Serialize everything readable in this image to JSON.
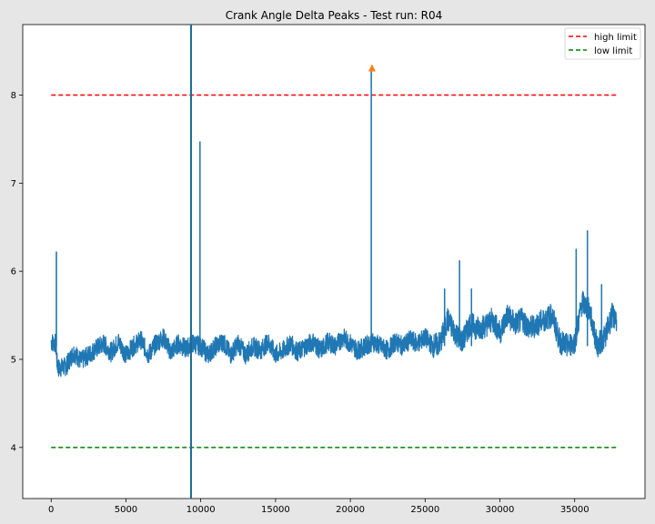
{
  "chart_data": {
    "type": "line",
    "title": "Crank Angle Delta Peaks - Test run: R04",
    "xlabel": "",
    "ylabel": "",
    "xlim": [
      -1900,
      39700
    ],
    "ylim": [
      3.42,
      8.8
    ],
    "xticks": [
      0,
      5000,
      10000,
      15000,
      20000,
      25000,
      30000,
      35000
    ],
    "yticks": [
      4,
      5,
      6,
      7,
      8
    ],
    "grid": false,
    "legend_position": "top-right",
    "colors": {
      "figure_bg": "#e6e6e6",
      "plot_bg": "#ffffff",
      "series": "#1f77b4",
      "high_limit": "#ff0000",
      "low_limit": "#008000",
      "vertical_marker": "#1a6b93",
      "peak_marker": "#ff7f0e"
    },
    "series": [
      {
        "name": "",
        "style": "solid",
        "note_type": "noisy_signal",
        "x": [
          0,
          300,
          400,
          500,
          1000,
          1500,
          2000,
          2500,
          3000,
          3500,
          4000,
          4500,
          5000,
          5500,
          6000,
          6500,
          7000,
          7500,
          8000,
          8500,
          9000,
          9500,
          10000,
          10500,
          11000,
          11500,
          12000,
          12500,
          13000,
          13500,
          14000,
          14500,
          15000,
          15500,
          16000,
          16500,
          17000,
          17500,
          18000,
          18500,
          19000,
          19500,
          20000,
          20500,
          21000,
          21500,
          22000,
          22500,
          23000,
          23500,
          24000,
          24500,
          25000,
          25500,
          26000,
          26500,
          27000,
          27500,
          28000,
          28500,
          29000,
          29500,
          30000,
          30500,
          31000,
          31500,
          32000,
          32500,
          33000,
          33500,
          34000,
          34500,
          35000,
          35500,
          36000,
          36500,
          37000,
          37500,
          37800
        ],
        "y": [
          5.2,
          5.18,
          4.95,
          4.9,
          4.92,
          5.08,
          4.98,
          5.05,
          5.12,
          5.18,
          5.08,
          5.2,
          5.05,
          5.15,
          5.22,
          5.05,
          5.18,
          5.25,
          5.08,
          5.18,
          5.12,
          5.18,
          5.15,
          5.05,
          5.15,
          5.2,
          5.05,
          5.18,
          5.05,
          5.15,
          5.1,
          5.2,
          5.05,
          5.1,
          5.18,
          5.08,
          5.15,
          5.2,
          5.1,
          5.2,
          5.15,
          5.25,
          5.18,
          5.1,
          5.15,
          5.2,
          5.15,
          5.1,
          5.2,
          5.15,
          5.22,
          5.18,
          5.25,
          5.15,
          5.18,
          5.45,
          5.3,
          5.2,
          5.4,
          5.35,
          5.38,
          5.45,
          5.3,
          5.5,
          5.4,
          5.45,
          5.35,
          5.4,
          5.45,
          5.5,
          5.2,
          5.15,
          5.2,
          5.65,
          5.55,
          5.15,
          5.25,
          5.5,
          5.45
        ],
        "spikes": [
          {
            "x": 350,
            "y": 6.22
          },
          {
            "x": 9950,
            "y": 7.47
          },
          {
            "x": 21400,
            "y": 8.28
          },
          {
            "x": 26300,
            "y": 5.8
          },
          {
            "x": 27300,
            "y": 6.12
          },
          {
            "x": 28100,
            "y": 5.8
          },
          {
            "x": 35100,
            "y": 6.25
          },
          {
            "x": 35850,
            "y": 6.46
          },
          {
            "x": 36800,
            "y": 5.85
          }
        ]
      }
    ],
    "reference_lines": [
      {
        "name": "high limit",
        "y": 8.0,
        "x_range": [
          0,
          37800
        ],
        "style": "dashed"
      },
      {
        "name": "low limit",
        "y": 4.0,
        "x_range": [
          0,
          37800
        ],
        "style": "dashed"
      }
    ],
    "vertical_marker": {
      "x": 9350
    },
    "peak_marker": {
      "x": 21450,
      "y": 8.31
    }
  }
}
